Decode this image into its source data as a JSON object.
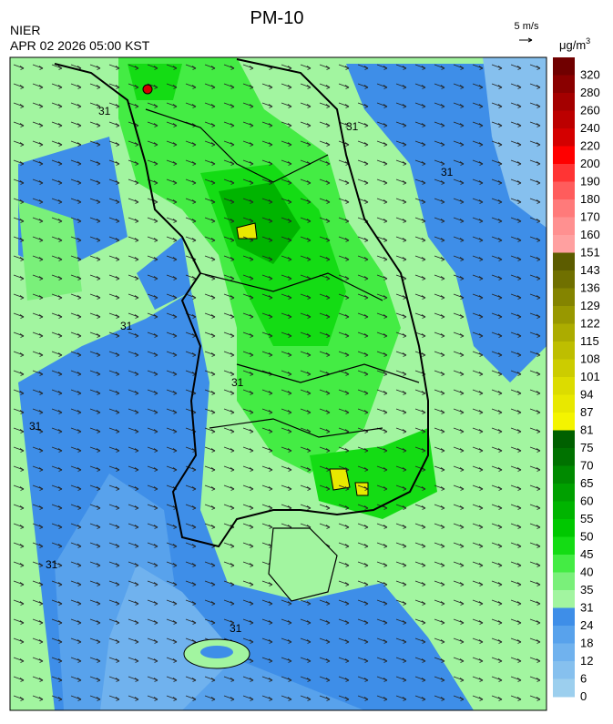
{
  "header": {
    "title": "PM-10",
    "agency": "NIER",
    "timestamp": "APR 02 2026 05:00 KST",
    "wind_scale": "5 m/s",
    "unit": "μg/m",
    "unit_exponent": "3"
  },
  "map": {
    "contour_label": "31"
  },
  "legend": {
    "levels": [
      {
        "label": "320",
        "color": "#700000"
      },
      {
        "label": "280",
        "color": "#8a0000"
      },
      {
        "label": "260",
        "color": "#a40000"
      },
      {
        "label": "240",
        "color": "#bc0000"
      },
      {
        "label": "220",
        "color": "#d40000"
      },
      {
        "label": "200",
        "color": "#ff0000"
      },
      {
        "label": "190",
        "color": "#ff3434"
      },
      {
        "label": "180",
        "color": "#ff5c5c"
      },
      {
        "label": "170",
        "color": "#ff7a7a"
      },
      {
        "label": "160",
        "color": "#ff9090"
      },
      {
        "label": "151",
        "color": "#ffa0a0"
      },
      {
        "label": "143",
        "color": "#5c5c00"
      },
      {
        "label": "136",
        "color": "#707000"
      },
      {
        "label": "129",
        "color": "#848400"
      },
      {
        "label": "122",
        "color": "#989800"
      },
      {
        "label": "115",
        "color": "#acac00"
      },
      {
        "label": "108",
        "color": "#bebe00"
      },
      {
        "label": "101",
        "color": "#cccc00"
      },
      {
        "label": "94",
        "color": "#dcdc00"
      },
      {
        "label": "87",
        "color": "#e8e800"
      },
      {
        "label": "81",
        "color": "#f4f400"
      },
      {
        "label": "75",
        "color": "#006000"
      },
      {
        "label": "70",
        "color": "#007200"
      },
      {
        "label": "65",
        "color": "#008a00"
      },
      {
        "label": "60",
        "color": "#00a000"
      },
      {
        "label": "55",
        "color": "#00b400"
      },
      {
        "label": "50",
        "color": "#00c800"
      },
      {
        "label": "45",
        "color": "#14dc14"
      },
      {
        "label": "40",
        "color": "#44ec44"
      },
      {
        "label": "35",
        "color": "#7af07a"
      },
      {
        "label": "31",
        "color": "#a2f5a0"
      },
      {
        "label": "24",
        "color": "#3e8ee8"
      },
      {
        "label": "18",
        "color": "#58a2ec"
      },
      {
        "label": "12",
        "color": "#70b2ee"
      },
      {
        "label": "6",
        "color": "#86c0ee"
      },
      {
        "label": "0",
        "color": "#9ccfee"
      }
    ]
  }
}
